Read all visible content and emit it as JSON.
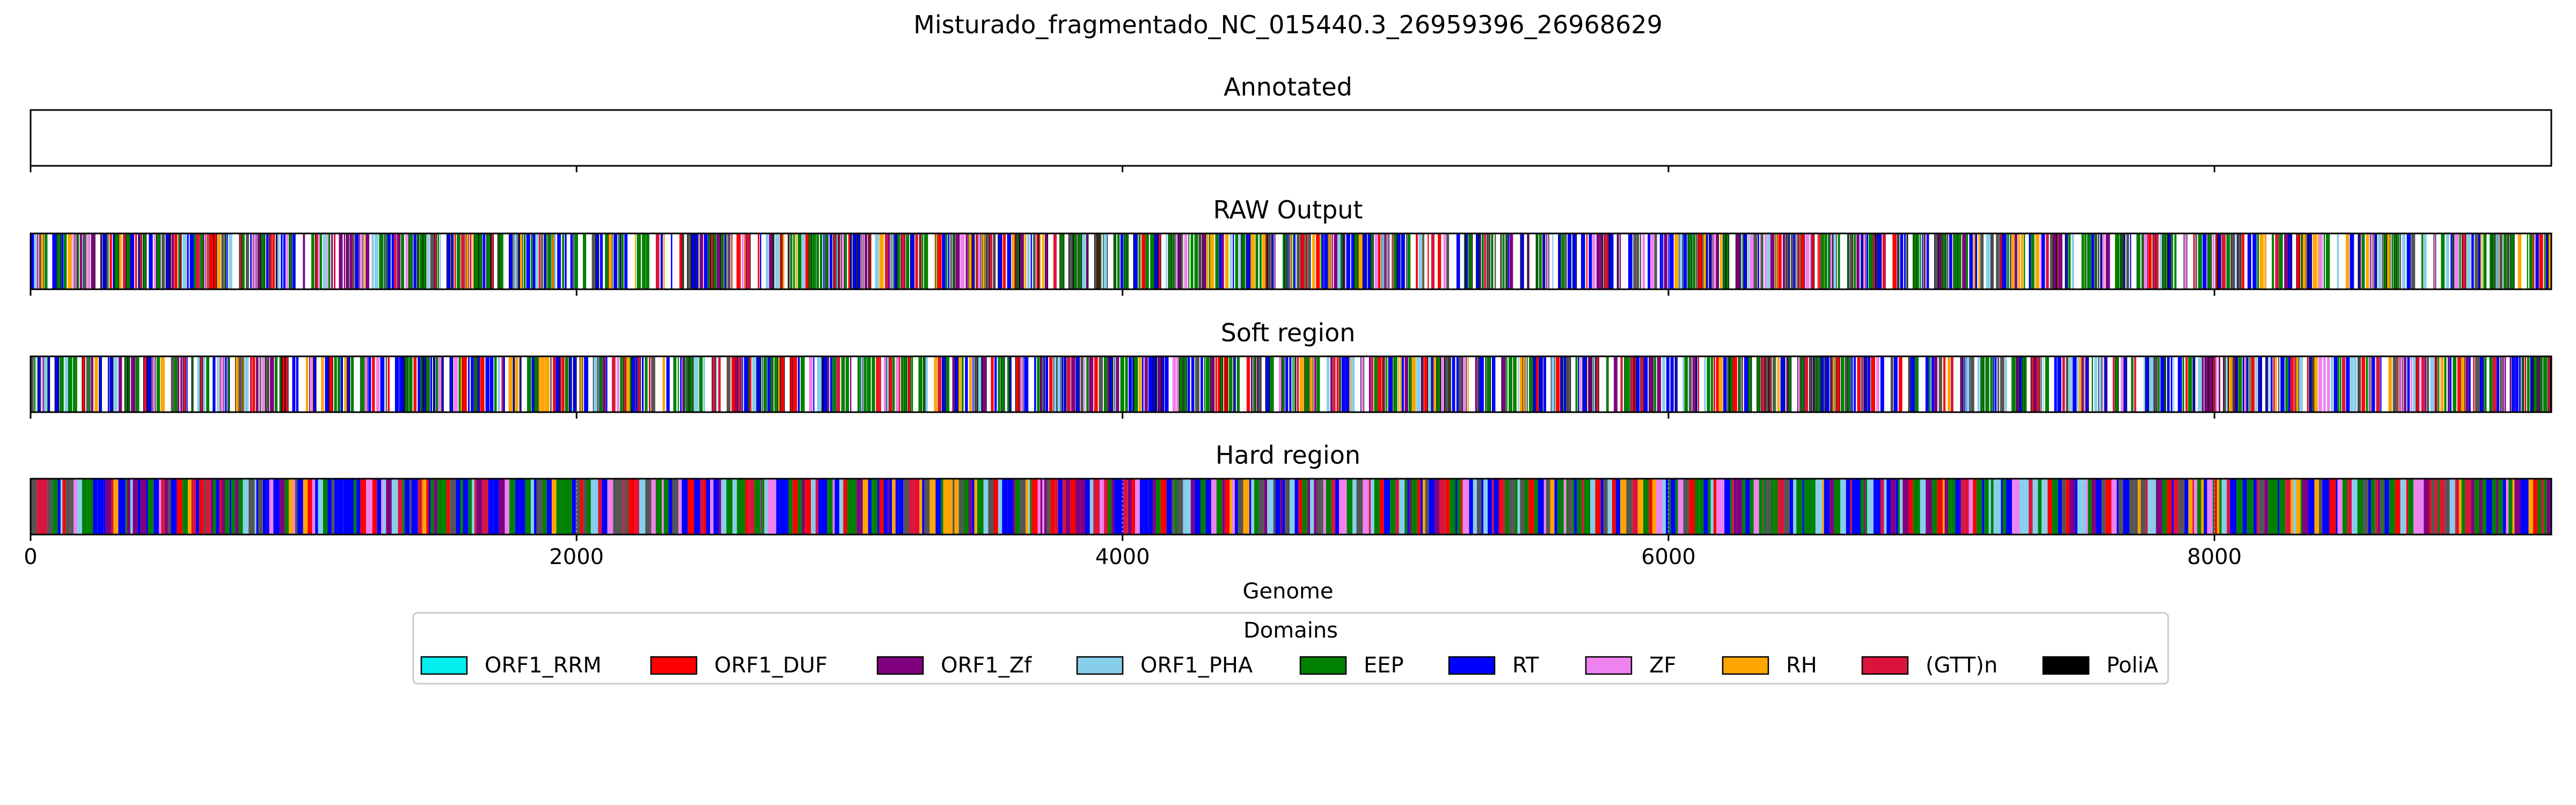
{
  "chart_data": {
    "type": "genome-track",
    "title": "Misturado_fragmentado_NC_015440.3_26959396_26968629",
    "xlabel": "Genome",
    "xlim": [
      0,
      9234
    ],
    "xticks": [
      0,
      2000,
      4000,
      6000,
      8000
    ],
    "xtick_labels": [
      "0",
      "2000",
      "4000",
      "6000",
      "8000"
    ],
    "panels": [
      {
        "title": "Annotated",
        "features": "none"
      },
      {
        "title": "RAW Output",
        "features": "dense"
      },
      {
        "title": "Soft region",
        "features": "dense"
      },
      {
        "title": "Hard region",
        "features": "dense-filled"
      }
    ],
    "legend": {
      "title": "Domains",
      "placement": "bottom-center",
      "items": [
        {
          "label": "ORF1_RRM",
          "color": "#00eeee"
        },
        {
          "label": "ORF1_DUF",
          "color": "#ff0000"
        },
        {
          "label": "ORF1_Zf",
          "color": "#800080"
        },
        {
          "label": "ORF1_PHA",
          "color": "#87ceeb"
        },
        {
          "label": "EEP",
          "color": "#008000"
        },
        {
          "label": "RT",
          "color": "#0000ff"
        },
        {
          "label": "ZF",
          "color": "#ee82ee"
        },
        {
          "label": "RH",
          "color": "#ffa500"
        },
        {
          "label": "(GTT)n",
          "color": "#dc143c"
        },
        {
          "label": "PoliA",
          "color": "#000000"
        }
      ]
    }
  }
}
